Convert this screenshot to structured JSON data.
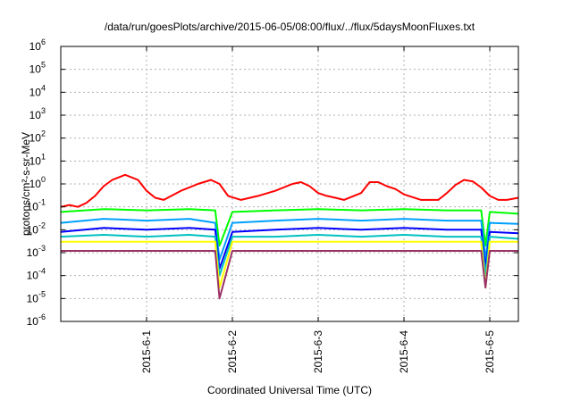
{
  "chart_data": {
    "type": "line",
    "title": "/data/run/goesPlots/archive/2015-06-05/08:00/flux/../flux/5daysMoonFluxes.txt",
    "xlabel": "Coordinated Universal Time (UTC)",
    "ylabel": "protons/cm²-s-sr-MeV",
    "yscale": "log",
    "xlim": [
      0,
      5.333
    ],
    "ylim": [
      1e-06,
      1000000
    ],
    "x_unit": "days since 2015-05-31 00:00 UTC",
    "x_ticks": [
      {
        "x": 1,
        "label": "2015-6-1"
      },
      {
        "x": 2,
        "label": "2015-6-2"
      },
      {
        "x": 3,
        "label": "2015-6-3"
      },
      {
        "x": 4,
        "label": "2015-6-4"
      },
      {
        "x": 5,
        "label": "2015-6-5"
      }
    ],
    "y_ticks": [
      {
        "exp": -6,
        "base": "10",
        "sup": "-6"
      },
      {
        "exp": -5,
        "base": "10",
        "sup": "-5"
      },
      {
        "exp": -4,
        "base": "10",
        "sup": "-4"
      },
      {
        "exp": -3,
        "base": "10",
        "sup": "-3"
      },
      {
        "exp": -2,
        "base": "10",
        "sup": "-2"
      },
      {
        "exp": -1,
        "base": "10",
        "sup": "-1"
      },
      {
        "exp": 0,
        "base": "10",
        "sup": "0"
      },
      {
        "exp": 1,
        "base": "10",
        "sup": "1"
      },
      {
        "exp": 2,
        "base": "10",
        "sup": "2"
      },
      {
        "exp": 3,
        "base": "10",
        "sup": "3"
      },
      {
        "exp": 4,
        "base": "10",
        "sup": "4"
      },
      {
        "exp": 5,
        "base": "10",
        "sup": "5"
      },
      {
        "exp": 6,
        "base": "10",
        "sup": "6"
      }
    ],
    "grid": true,
    "legend": "none",
    "series": [
      {
        "color": "#ff0000",
        "x": [
          0,
          0.1,
          0.2,
          0.3,
          0.4,
          0.5,
          0.6,
          0.75,
          0.9,
          1.0,
          1.1,
          1.2,
          1.4,
          1.6,
          1.75,
          1.85,
          1.95,
          2.1,
          2.3,
          2.5,
          2.7,
          2.8,
          2.9,
          3.0,
          3.1,
          3.2,
          3.3,
          3.5,
          3.6,
          3.7,
          3.8,
          3.9,
          4.0,
          4.2,
          4.4,
          4.5,
          4.6,
          4.7,
          4.8,
          4.9,
          5.0,
          5.1,
          5.2,
          5.3333
        ],
        "y": [
          0.1,
          0.12,
          0.1,
          0.15,
          0.3,
          0.8,
          1.5,
          2.5,
          1.5,
          0.5,
          0.25,
          0.2,
          0.5,
          1.0,
          1.5,
          1.0,
          0.3,
          0.2,
          0.3,
          0.5,
          1.0,
          1.2,
          0.8,
          0.4,
          0.3,
          0.25,
          0.2,
          0.4,
          1.2,
          1.2,
          0.8,
          0.6,
          0.35,
          0.2,
          0.2,
          0.4,
          0.9,
          1.5,
          1.3,
          0.7,
          0.3,
          0.2,
          0.2,
          0.25
        ]
      },
      {
        "color": "#00ff00",
        "x": [
          0,
          0.5,
          1.0,
          1.5,
          1.8,
          1.85,
          2.0,
          2.5,
          3.0,
          3.5,
          4.0,
          4.5,
          4.9,
          4.95,
          5.0,
          5.3333
        ],
        "y": [
          0.06,
          0.08,
          0.07,
          0.08,
          0.07,
          0.002,
          0.06,
          0.07,
          0.08,
          0.07,
          0.08,
          0.07,
          0.07,
          0.002,
          0.06,
          0.05
        ]
      },
      {
        "color": "#00a0ff",
        "x": [
          0,
          0.5,
          1.0,
          1.5,
          1.8,
          1.85,
          2.0,
          2.5,
          3.0,
          3.5,
          4.0,
          4.5,
          4.9,
          4.95,
          5.0,
          5.3333
        ],
        "y": [
          0.02,
          0.03,
          0.025,
          0.03,
          0.02,
          0.0005,
          0.02,
          0.025,
          0.03,
          0.025,
          0.03,
          0.025,
          0.025,
          0.0005,
          0.02,
          0.018
        ]
      },
      {
        "color": "#0000ff",
        "x": [
          0,
          0.5,
          1.0,
          1.5,
          1.8,
          1.85,
          2.0,
          2.5,
          3.0,
          3.5,
          4.0,
          4.5,
          4.9,
          4.95,
          5.0,
          5.3333
        ],
        "y": [
          0.008,
          0.012,
          0.01,
          0.012,
          0.01,
          0.0002,
          0.008,
          0.01,
          0.012,
          0.01,
          0.012,
          0.01,
          0.01,
          0.0002,
          0.008,
          0.007
        ]
      },
      {
        "color": "#00c0c0",
        "x": [
          0,
          0.5,
          1.0,
          1.5,
          1.8,
          1.85,
          2.0,
          2.5,
          3.0,
          3.5,
          4.0,
          4.5,
          4.9,
          4.95,
          5.0,
          5.3333
        ],
        "y": [
          0.005,
          0.006,
          0.005,
          0.006,
          0.005,
          0.0001,
          0.005,
          0.005,
          0.006,
          0.005,
          0.006,
          0.005,
          0.005,
          0.0001,
          0.005,
          0.004
        ]
      },
      {
        "color": "#ffff00",
        "x": [
          0,
          0.5,
          1.0,
          1.5,
          1.8,
          1.85,
          2.0,
          2.5,
          3.0,
          3.5,
          4.0,
          4.5,
          4.9,
          4.95,
          5.0,
          5.3333
        ],
        "y": [
          0.003,
          0.003,
          0.003,
          0.003,
          0.003,
          3e-05,
          0.003,
          0.003,
          0.003,
          0.003,
          0.003,
          0.003,
          0.003,
          3e-05,
          0.003,
          0.003
        ]
      },
      {
        "color": "#993366",
        "x": [
          0,
          0.5,
          1.0,
          1.5,
          1.8,
          1.85,
          2.0,
          2.5,
          3.0,
          3.5,
          4.0,
          4.5,
          4.9,
          4.95,
          5.0,
          5.3333
        ],
        "y": [
          0.0012,
          0.0012,
          0.0012,
          0.0012,
          0.0012,
          1e-05,
          0.0012,
          0.0012,
          0.0012,
          0.0012,
          0.0012,
          0.0012,
          0.0012,
          3e-05,
          0.0012,
          0.0012
        ]
      }
    ]
  }
}
